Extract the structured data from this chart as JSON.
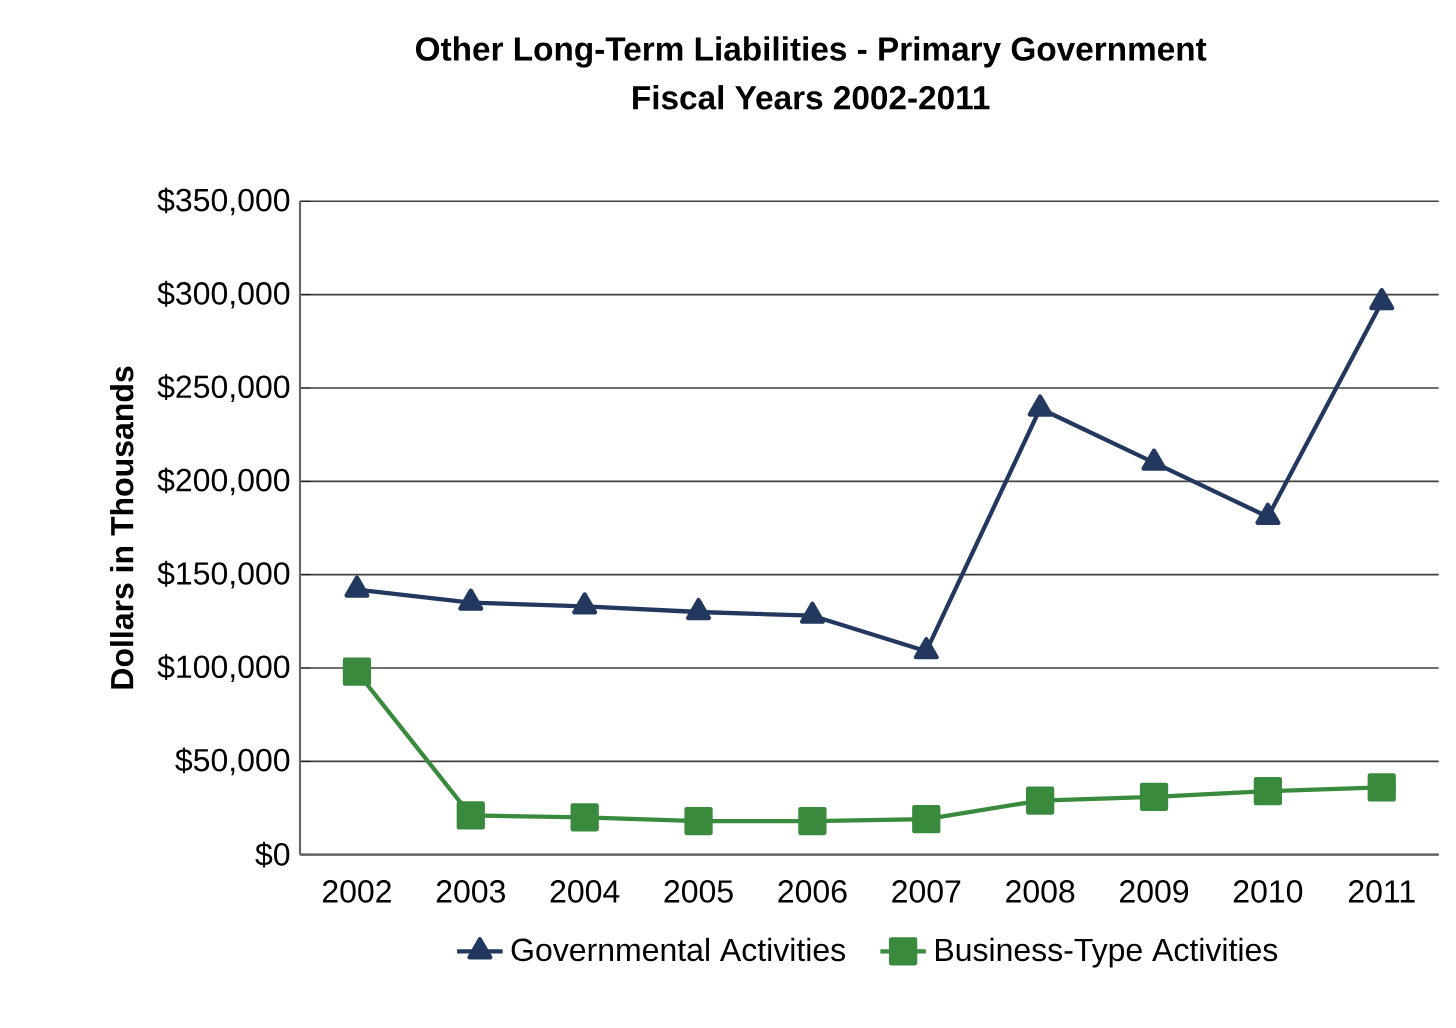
{
  "chart_data": {
    "type": "line",
    "title": "Other Long-Term Liabilities - Primary Government",
    "subtitle": "Fiscal Years 2002-2011",
    "ylabel": "Dollars in Thousands",
    "categories": [
      "2002",
      "2003",
      "2004",
      "2005",
      "2006",
      "2007",
      "2008",
      "2009",
      "2010",
      "2011"
    ],
    "series": [
      {
        "name": "Governmental Activities",
        "color": "#22385f",
        "marker": "triangle",
        "values": [
          142000,
          135000,
          133000,
          130000,
          128000,
          109000,
          239000,
          210000,
          181000,
          296000
        ]
      },
      {
        "name": "Business-Type Activities",
        "color": "#3a8a3e",
        "marker": "square",
        "values": [
          98000,
          21000,
          20000,
          18000,
          18000,
          19000,
          29000,
          31000,
          34000,
          36000
        ]
      }
    ],
    "ylim": [
      0,
      350000
    ],
    "yticks": [
      {
        "value": 0,
        "label": "$0"
      },
      {
        "value": 50000,
        "label": "$50,000"
      },
      {
        "value": 100000,
        "label": "$100,000"
      },
      {
        "value": 150000,
        "label": "$150,000"
      },
      {
        "value": 200000,
        "label": "$200,000"
      },
      {
        "value": 250000,
        "label": "$250,000"
      },
      {
        "value": 300000,
        "label": "$300,000"
      },
      {
        "value": 350000,
        "label": "$350,000"
      }
    ],
    "grid": "y",
    "legend": "bottom",
    "line_style": "solid"
  }
}
